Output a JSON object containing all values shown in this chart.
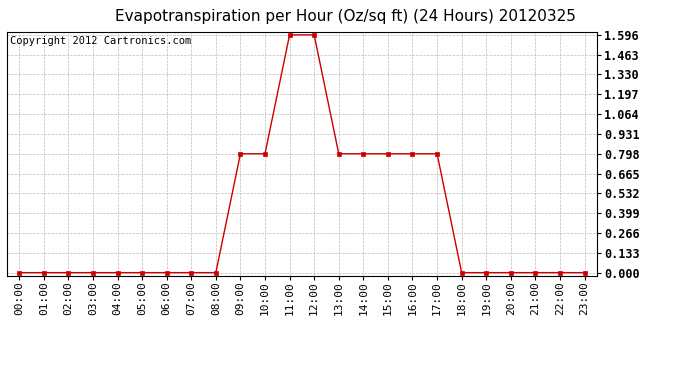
{
  "title": "Evapotranspiration per Hour (Oz/sq ft) (24 Hours) 20120325",
  "copyright_text": "Copyright 2012 Cartronics.com",
  "hours": [
    0,
    1,
    2,
    3,
    4,
    5,
    6,
    7,
    8,
    9,
    10,
    11,
    12,
    13,
    14,
    15,
    16,
    17,
    18,
    19,
    20,
    21,
    22,
    23
  ],
  "values": [
    0.0,
    0.0,
    0.0,
    0.0,
    0.0,
    0.0,
    0.0,
    0.0,
    0.0,
    0.798,
    0.798,
    1.596,
    1.596,
    0.798,
    0.798,
    0.798,
    0.798,
    0.798,
    0.0,
    0.0,
    0.0,
    0.0,
    0.0,
    0.0
  ],
  "yticks": [
    0.0,
    0.133,
    0.266,
    0.399,
    0.532,
    0.665,
    0.798,
    0.931,
    1.064,
    1.197,
    1.33,
    1.463,
    1.596
  ],
  "ymax": 1.596,
  "line_color": "#cc0000",
  "marker_color": "#cc0000",
  "bg_color": "#ffffff",
  "plot_bg_color": "#ffffff",
  "grid_color": "#bbbbbb",
  "title_fontsize": 11,
  "copyright_fontsize": 7.5,
  "tick_fontsize": 8,
  "ytick_fontsize": 8.5
}
